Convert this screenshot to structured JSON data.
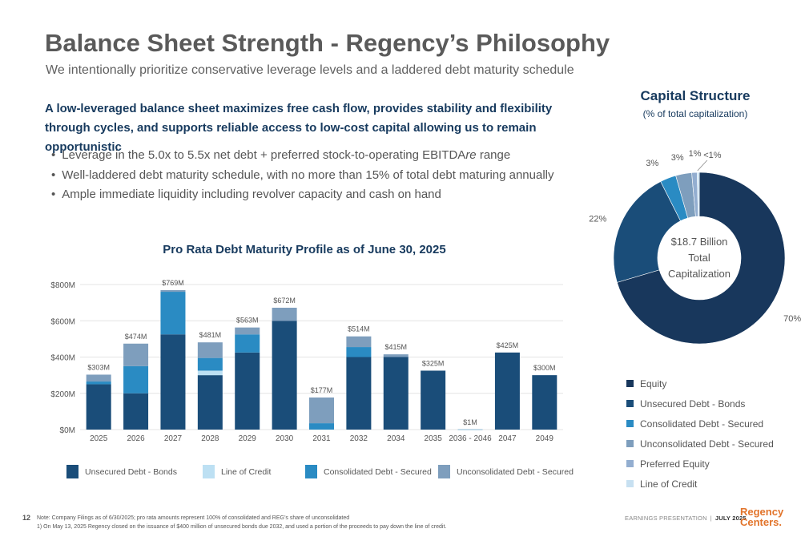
{
  "header": {
    "title": "Balance Sheet Strength - Regency’s Philosophy",
    "subtitle": "We intentionally prioritize conservative leverage levels and a laddered debt maturity schedule"
  },
  "lead": "A low-leveraged balance sheet maximizes free cash flow, provides stability and flexibility through cycles, and supports reliable access to low-cost capital allowing us to remain opportunistic",
  "bullets": [
    {
      "before": "Leverage in the 5.0x to 5.5x net debt + preferred stock-to-operating EBITDA",
      "italic": "re",
      "after": " range"
    },
    {
      "before": "Well-laddered debt maturity schedule, with no more than 15% of total debt maturing annually",
      "italic": "",
      "after": ""
    },
    {
      "before": "Ample immediate liquidity including revolver capacity and cash on hand",
      "italic": "",
      "after": ""
    }
  ],
  "colors": {
    "unsecured": "#1a4d79",
    "loc": "#bde0f3",
    "consolidated": "#2a8bc3",
    "unconsolidated": "#7e9ebd",
    "equity": "#18375c",
    "preferred": "#93aed0",
    "pie_loc": "#c7e0f1"
  },
  "chart_data": [
    {
      "type": "bar",
      "title": "Pro Rata Debt Maturity Profile as of June 30, 2025",
      "categories": [
        "2025",
        "2026",
        "2027",
        "2028",
        "2029",
        "2030",
        "2031",
        "2032",
        "2034",
        "2035",
        "2036 - 2046",
        "2047",
        "2049"
      ],
      "series": [
        {
          "name": "Unsecured Debt - Bonds",
          "color_key": "unsecured",
          "values": [
            250,
            200,
            525,
            300,
            425,
            600,
            0,
            400,
            400,
            325,
            0,
            425,
            300
          ]
        },
        {
          "name": "Line of Credit",
          "color_key": "loc",
          "values": [
            0,
            0,
            0,
            25,
            0,
            0,
            0,
            0,
            0,
            0,
            0,
            0,
            0
          ]
        },
        {
          "name": "Consolidated Debt - Secured",
          "color_key": "consolidated",
          "values": [
            15,
            150,
            235,
            70,
            100,
            0,
            35,
            55,
            0,
            0,
            1,
            0,
            0
          ]
        },
        {
          "name": "Unconsolidated Debt - Secured",
          "color_key": "unconsolidated",
          "values": [
            38,
            124,
            9,
            86,
            38,
            72,
            142,
            59,
            15,
            0,
            0,
            0,
            0
          ]
        }
      ],
      "totals": [
        "$303M",
        "$474M",
        "$769M",
        "$481M",
        "$563M",
        "$672M",
        "$177M",
        "$514M",
        "$415M",
        "$325M",
        "$1M",
        "$425M",
        "$300M"
      ],
      "y_ticks": [
        {
          "value": 800,
          "label": "$800M"
        },
        {
          "value": 600,
          "label": "$600M"
        },
        {
          "value": 400,
          "label": "$400M"
        },
        {
          "value": 200,
          "label": "$200M"
        },
        {
          "value": 0,
          "label": "$0M"
        }
      ],
      "ylim": [
        0,
        800
      ],
      "grid": true,
      "legend": "bottom"
    },
    {
      "type": "pie",
      "title": "Capital Structure",
      "subtitle": "(% of total capitalization)",
      "center_label": [
        "$18.7 Billion",
        "Total",
        "Capitalization"
      ],
      "slices": [
        {
          "name": "Equity",
          "value": 70,
          "label": "70%",
          "color_key": "equity"
        },
        {
          "name": "Unsecured Debt - Bonds",
          "value": 22,
          "label": "22%",
          "color_key": "unsecured"
        },
        {
          "name": "Consolidated Debt - Secured",
          "value": 3,
          "label": "3%",
          "color_key": "consolidated"
        },
        {
          "name": "Unconsolidated Debt - Secured",
          "value": 3,
          "label": "3%",
          "color_key": "unconsolidated"
        },
        {
          "name": "Preferred Equity",
          "value": 1,
          "label": "1%",
          "color_key": "preferred"
        },
        {
          "name": "Line of Credit",
          "value": 0.4,
          "label": "<1%",
          "color_key": "pie_loc"
        }
      ],
      "legend": "bottom"
    }
  ],
  "footer": {
    "page": "12",
    "note1": "Note: Company Filings as of 6/30/2025; pro rata amounts represent 100% of consolidated and REG’s share of unconsolidated",
    "note2": "1) On May 13, 2025 Regency closed on the issuance of $400 million of unsecured bonds due 2032, and used a portion of the proceeds to pay down the line of credit.",
    "presentation": "EARNINGS PRESENTATION",
    "separator": "|",
    "date": "JULY 2025",
    "logo_line1": "Regency",
    "logo_line2": "Centers."
  }
}
